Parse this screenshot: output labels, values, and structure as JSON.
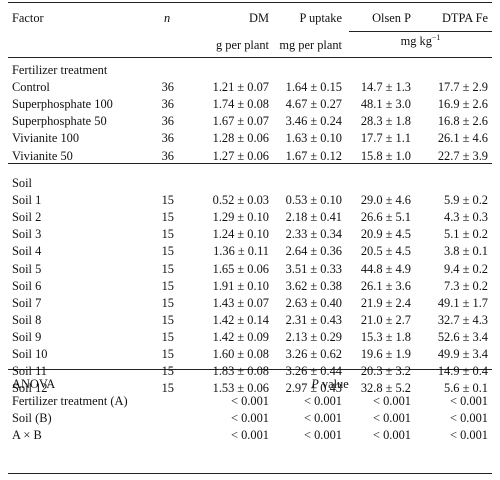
{
  "headers": {
    "factor": "Factor",
    "n": "n",
    "dm": "DM",
    "p_uptake": "P uptake",
    "olsen_p": "Olsen P",
    "dtpa_fe": "DTPA Fe",
    "dm_unit": "g per plant",
    "p_unit": "mg per plant",
    "soil_unit_base": "mg kg",
    "soil_unit_exp": "−1"
  },
  "fert_section": {
    "title": "Fertilizer treatment",
    "rows": [
      {
        "factor": "Control",
        "n": "36",
        "dm": "1.21 ± 0.07",
        "p_uptake": "1.64 ± 0.15",
        "olsen_p": "14.7 ± 1.3",
        "dtpa_fe": "17.7 ± 2.9"
      },
      {
        "factor": "Superphosphate 100",
        "n": "36",
        "dm": "1.74 ± 0.08",
        "p_uptake": "4.67 ± 0.27",
        "olsen_p": "48.1 ± 3.0",
        "dtpa_fe": "16.9 ± 2.6"
      },
      {
        "factor": "Superphosphate 50",
        "n": "36",
        "dm": "1.67 ± 0.07",
        "p_uptake": "3.46 ± 0.24",
        "olsen_p": "28.3 ± 1.8",
        "dtpa_fe": "16.8 ± 2.6"
      },
      {
        "factor": "Vivianite 100",
        "n": "36",
        "dm": "1.28 ± 0.06",
        "p_uptake": "1.63 ± 0.10",
        "olsen_p": "17.7 ± 1.1",
        "dtpa_fe": "26.1 ± 4.6"
      },
      {
        "factor": "Vivianite 50",
        "n": "36",
        "dm": "1.27 ± 0.06",
        "p_uptake": "1.67 ± 0.12",
        "olsen_p": "15.8 ± 1.0",
        "dtpa_fe": "22.7 ± 3.9"
      }
    ]
  },
  "soil_section": {
    "title": "Soil",
    "rows": [
      {
        "factor": "Soil 1",
        "n": "15",
        "dm": "0.52 ± 0.03",
        "p_uptake": "0.53 ± 0.10",
        "olsen_p": "29.0 ± 4.6",
        "dtpa_fe": "5.9 ± 0.2"
      },
      {
        "factor": "Soil 2",
        "n": "15",
        "dm": "1.29 ± 0.10",
        "p_uptake": "2.18 ± 0.41",
        "olsen_p": "26.6 ± 5.1",
        "dtpa_fe": "4.3 ± 0.3"
      },
      {
        "factor": "Soil 3",
        "n": "15",
        "dm": "1.24 ± 0.10",
        "p_uptake": "2.33 ± 0.34",
        "olsen_p": "20.9 ± 4.5",
        "dtpa_fe": "5.1 ± 0.2"
      },
      {
        "factor": "Soil 4",
        "n": "15",
        "dm": "1.36 ± 0.11",
        "p_uptake": "2.64 ± 0.36",
        "olsen_p": "20.5 ± 4.5",
        "dtpa_fe": "3.8 ± 0.1"
      },
      {
        "factor": "Soil 5",
        "n": "15",
        "dm": "1.65 ± 0.06",
        "p_uptake": "3.51 ± 0.33",
        "olsen_p": "44.8 ± 4.9",
        "dtpa_fe": "9.4 ± 0.2"
      },
      {
        "factor": "Soil 6",
        "n": "15",
        "dm": "1.91 ± 0.10",
        "p_uptake": "3.62 ± 0.38",
        "olsen_p": "26.1 ± 3.6",
        "dtpa_fe": "7.3 ± 0.2"
      },
      {
        "factor": "Soil 7",
        "n": "15",
        "dm": "1.43 ± 0.07",
        "p_uptake": "2.63 ± 0.40",
        "olsen_p": "21.9 ± 2.4",
        "dtpa_fe": "49.1 ± 1.7"
      },
      {
        "factor": "Soil 8",
        "n": "15",
        "dm": "1.42 ± 0.14",
        "p_uptake": "2.31 ± 0.43",
        "olsen_p": "21.0 ± 2.7",
        "dtpa_fe": "32.7 ± 4.3"
      },
      {
        "factor": "Soil 9",
        "n": "15",
        "dm": "1.42 ± 0.09",
        "p_uptake": "2.13 ± 0.29",
        "olsen_p": "15.3 ± 1.8",
        "dtpa_fe": "52.6 ± 3.4"
      },
      {
        "factor": "Soil 10",
        "n": "15",
        "dm": "1.60 ± 0.08",
        "p_uptake": "3.26 ± 0.62",
        "olsen_p": "19.6 ± 1.9",
        "dtpa_fe": "49.9 ± 3.4"
      },
      {
        "factor": "Soil 11",
        "n": "15",
        "dm": "1.83 ± 0.08",
        "p_uptake": "3.26 ± 0.44",
        "olsen_p": "20.3 ± 3.2",
        "dtpa_fe": "14.9 ± 0.4"
      },
      {
        "factor": "Soil 12",
        "n": "15",
        "dm": "1.53 ± 0.06",
        "p_uptake": "2.97 ± 0.43",
        "olsen_p": "32.8 ± 5.2",
        "dtpa_fe": "5.6 ± 0.1"
      }
    ]
  },
  "anova": {
    "title": "ANOVA",
    "pvalue_label_italic": "P",
    "pvalue_label_rest": " value",
    "rows": [
      {
        "factor": "Fertilizer treatment (A)",
        "dm": "< 0.001",
        "p_uptake": "< 0.001",
        "olsen_p": "< 0.001",
        "dtpa_fe": "< 0.001"
      },
      {
        "factor": "Soil (B)",
        "dm": "< 0.001",
        "p_uptake": "< 0.001",
        "olsen_p": "< 0.001",
        "dtpa_fe": "< 0.001"
      },
      {
        "factor": "A × B",
        "dm": "< 0.001",
        "p_uptake": "< 0.001",
        "olsen_p": "< 0.001",
        "dtpa_fe": "< 0.001"
      }
    ]
  }
}
